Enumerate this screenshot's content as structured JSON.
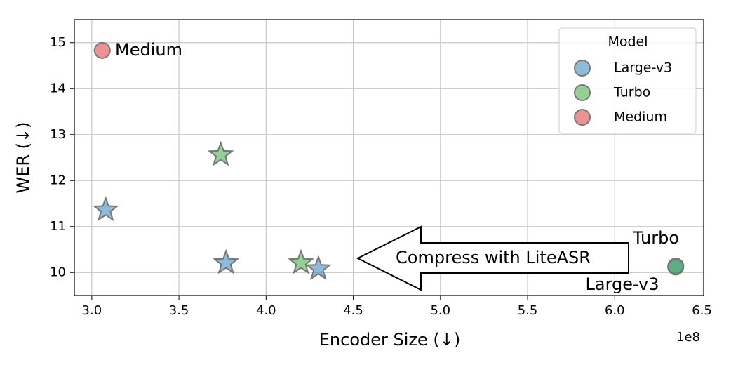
{
  "chart_data": {
    "type": "scatter",
    "xlabel": "Encoder Size (↓)",
    "ylabel": "WER (↓)",
    "x_offset_label": "1e8",
    "xlim": [
      2.9,
      6.51
    ],
    "ylim": [
      9.5,
      15.5
    ],
    "xticks": [
      {
        "value": 3.0,
        "label": "3.0"
      },
      {
        "value": 3.5,
        "label": "3.5"
      },
      {
        "value": 4.0,
        "label": "4.0"
      },
      {
        "value": 4.5,
        "label": "4.5"
      },
      {
        "value": 5.0,
        "label": "5.0"
      },
      {
        "value": 5.5,
        "label": "5.5"
      },
      {
        "value": 6.0,
        "label": "6.0"
      },
      {
        "value": 6.5,
        "label": "6.5"
      }
    ],
    "yticks": [
      10,
      11,
      12,
      13,
      14,
      15
    ],
    "grid": true,
    "alpha": 0.5,
    "legend": {
      "title": "Model",
      "position": "upper right"
    },
    "series": [
      {
        "name": "Large-v3",
        "color": "#1f77b4",
        "x": [
          6.35,
          3.08,
          3.77,
          4.3
        ],
        "values": [
          10.14,
          11.36,
          10.21,
          10.08
        ],
        "markers": [
          "circle",
          "star",
          "star",
          "star"
        ]
      },
      {
        "name": "Turbo",
        "color": "#2ca02c",
        "x": [
          6.35,
          3.74,
          4.2
        ],
        "values": [
          10.12,
          12.56,
          10.21
        ],
        "markers": [
          "circle",
          "star",
          "star"
        ]
      },
      {
        "name": "Medium",
        "color": "#d62728",
        "x": [
          3.06
        ],
        "values": [
          14.83
        ],
        "markers": [
          "circle"
        ]
      }
    ],
    "annotations": [
      "Medium",
      "Turbo",
      "Large-v3",
      "Compress with LiteASR"
    ]
  }
}
